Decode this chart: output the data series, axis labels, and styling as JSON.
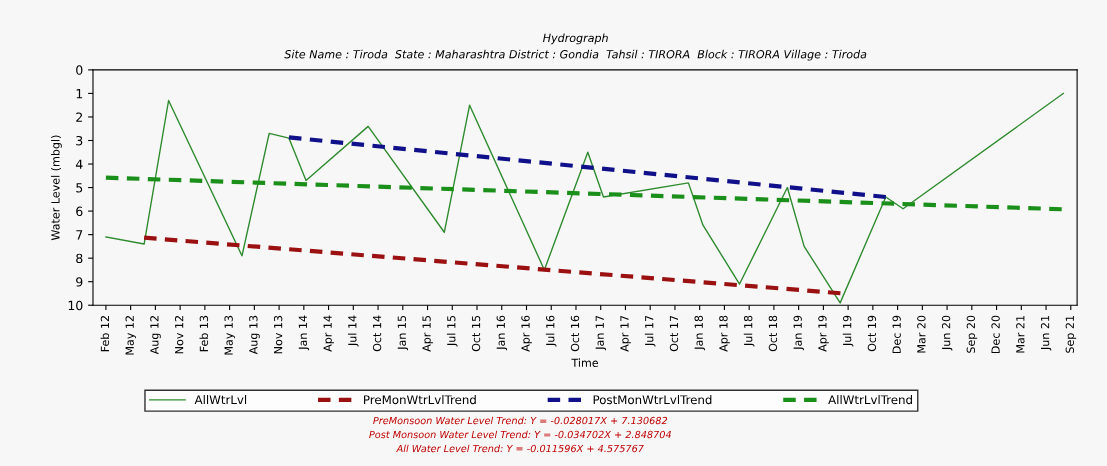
{
  "chart_data": {
    "type": "line",
    "title": "Hydrograph",
    "subtitle": "Site Name : Tiroda  State : Maharashtra District : Gondia  Tahsil : TIRORA  Block : TIRORA Village : Tiroda",
    "xlabel": "Time",
    "ylabel": "Water Level (mbgl)",
    "xlim": [
      "2011-12-25",
      "2021-10-13"
    ],
    "xticks": [
      {
        "value": "2012-02-10",
        "label": "Feb 12"
      },
      {
        "value": "2012-05-10",
        "label": "May 12"
      },
      {
        "value": "2012-08-08",
        "label": "Aug 12"
      },
      {
        "value": "2012-11-06",
        "label": "Nov 12"
      },
      {
        "value": "2013-02-04",
        "label": "Feb 13"
      },
      {
        "value": "2013-05-05",
        "label": "May 13"
      },
      {
        "value": "2013-08-03",
        "label": "Aug 13"
      },
      {
        "value": "2013-11-01",
        "label": "Nov 13"
      },
      {
        "value": "2014-01-30",
        "label": "Jan 14"
      },
      {
        "value": "2014-04-30",
        "label": "Apr 14"
      },
      {
        "value": "2014-07-29",
        "label": "Jul 14"
      },
      {
        "value": "2014-10-27",
        "label": "Oct 14"
      },
      {
        "value": "2015-01-25",
        "label": "Jan 15"
      },
      {
        "value": "2015-04-25",
        "label": "Apr 15"
      },
      {
        "value": "2015-07-24",
        "label": "Jul 15"
      },
      {
        "value": "2015-10-22",
        "label": "Oct 15"
      },
      {
        "value": "2016-01-20",
        "label": "Jan 16"
      },
      {
        "value": "2016-04-19",
        "label": "Apr 16"
      },
      {
        "value": "2016-07-18",
        "label": "Jul 16"
      },
      {
        "value": "2016-10-16",
        "label": "Oct 16"
      },
      {
        "value": "2017-01-14",
        "label": "Jan 17"
      },
      {
        "value": "2017-04-14",
        "label": "Apr 17"
      },
      {
        "value": "2017-07-13",
        "label": "Jul 17"
      },
      {
        "value": "2017-10-11",
        "label": "Oct 17"
      },
      {
        "value": "2018-01-09",
        "label": "Jan 18"
      },
      {
        "value": "2018-04-09",
        "label": "Apr 18"
      },
      {
        "value": "2018-07-08",
        "label": "Jul 18"
      },
      {
        "value": "2018-10-06",
        "label": "Oct 18"
      },
      {
        "value": "2019-01-04",
        "label": "Jan 19"
      },
      {
        "value": "2019-04-04",
        "label": "Apr 19"
      },
      {
        "value": "2019-07-03",
        "label": "Jul 19"
      },
      {
        "value": "2019-10-01",
        "label": "Oct 19"
      },
      {
        "value": "2019-12-30",
        "label": "Dec 19"
      },
      {
        "value": "2020-03-29",
        "label": "Mar 20"
      },
      {
        "value": "2020-06-27",
        "label": "Jun 20"
      },
      {
        "value": "2020-09-25",
        "label": "Sep 20"
      },
      {
        "value": "2020-12-24",
        "label": "Dec 20"
      },
      {
        "value": "2021-03-24",
        "label": "Mar 21"
      },
      {
        "value": "2021-06-22",
        "label": "Jun 21"
      },
      {
        "value": "2021-09-20",
        "label": "Sep 21"
      }
    ],
    "ylim": [
      10,
      0
    ],
    "yticks": [
      0,
      1,
      2,
      3,
      4,
      5,
      6,
      7,
      8,
      9,
      10
    ],
    "grid": false,
    "legend": "bottom",
    "marker": "none",
    "series": [
      {
        "name": "AllWtrLvl",
        "color": "#2e8b2e",
        "line_style": "solid",
        "x": [
          "2012-02-10",
          "2012-06-28",
          "2012-09-25",
          "2013-06-19",
          "2013-09-26",
          "2013-12-07",
          "2014-02-07",
          "2014-09-21",
          "2015-06-25",
          "2015-09-25",
          "2016-06-23",
          "2016-11-28",
          "2017-01-24",
          "2017-11-29",
          "2018-01-21",
          "2018-06-03",
          "2018-11-24",
          "2019-01-24",
          "2019-06-04",
          "2019-11-17",
          "2020-01-19",
          "2021-08-24"
        ],
        "values": [
          7.1,
          7.4,
          1.3,
          7.9,
          2.7,
          2.9,
          4.7,
          2.4,
          6.9,
          1.5,
          8.5,
          3.5,
          5.4,
          4.8,
          6.6,
          9.1,
          5.0,
          7.5,
          9.9,
          5.4,
          5.9,
          1.0
        ]
      },
      {
        "name": "PreMonWtrLvlTrend",
        "color": "#9b1010",
        "line_style": "dashed",
        "x": [
          "2012-06-28",
          "2019-06-05"
        ],
        "values": [
          7.13,
          9.49
        ]
      },
      {
        "name": "PostMonWtrLvlTrend",
        "color": "#10108b",
        "line_style": "dashed",
        "x": [
          "2013-12-07",
          "2019-11-17"
        ],
        "values": [
          2.87,
          5.4
        ]
      },
      {
        "name": "AllWtrLvlTrend",
        "color": "#1a8f1a",
        "line_style": "dashed",
        "x": [
          "2012-02-10",
          "2021-08-18"
        ],
        "values": [
          4.58,
          5.92
        ]
      }
    ],
    "annotations": [
      "PreMonsoon Water Level Trend: Y = -0.028017X + 7.130682",
      "Post Monsoon Water Level Trend: Y = -0.034702X + 2.848704",
      "All Water Level Trend: Y = -0.011596X + 4.575767"
    ]
  }
}
